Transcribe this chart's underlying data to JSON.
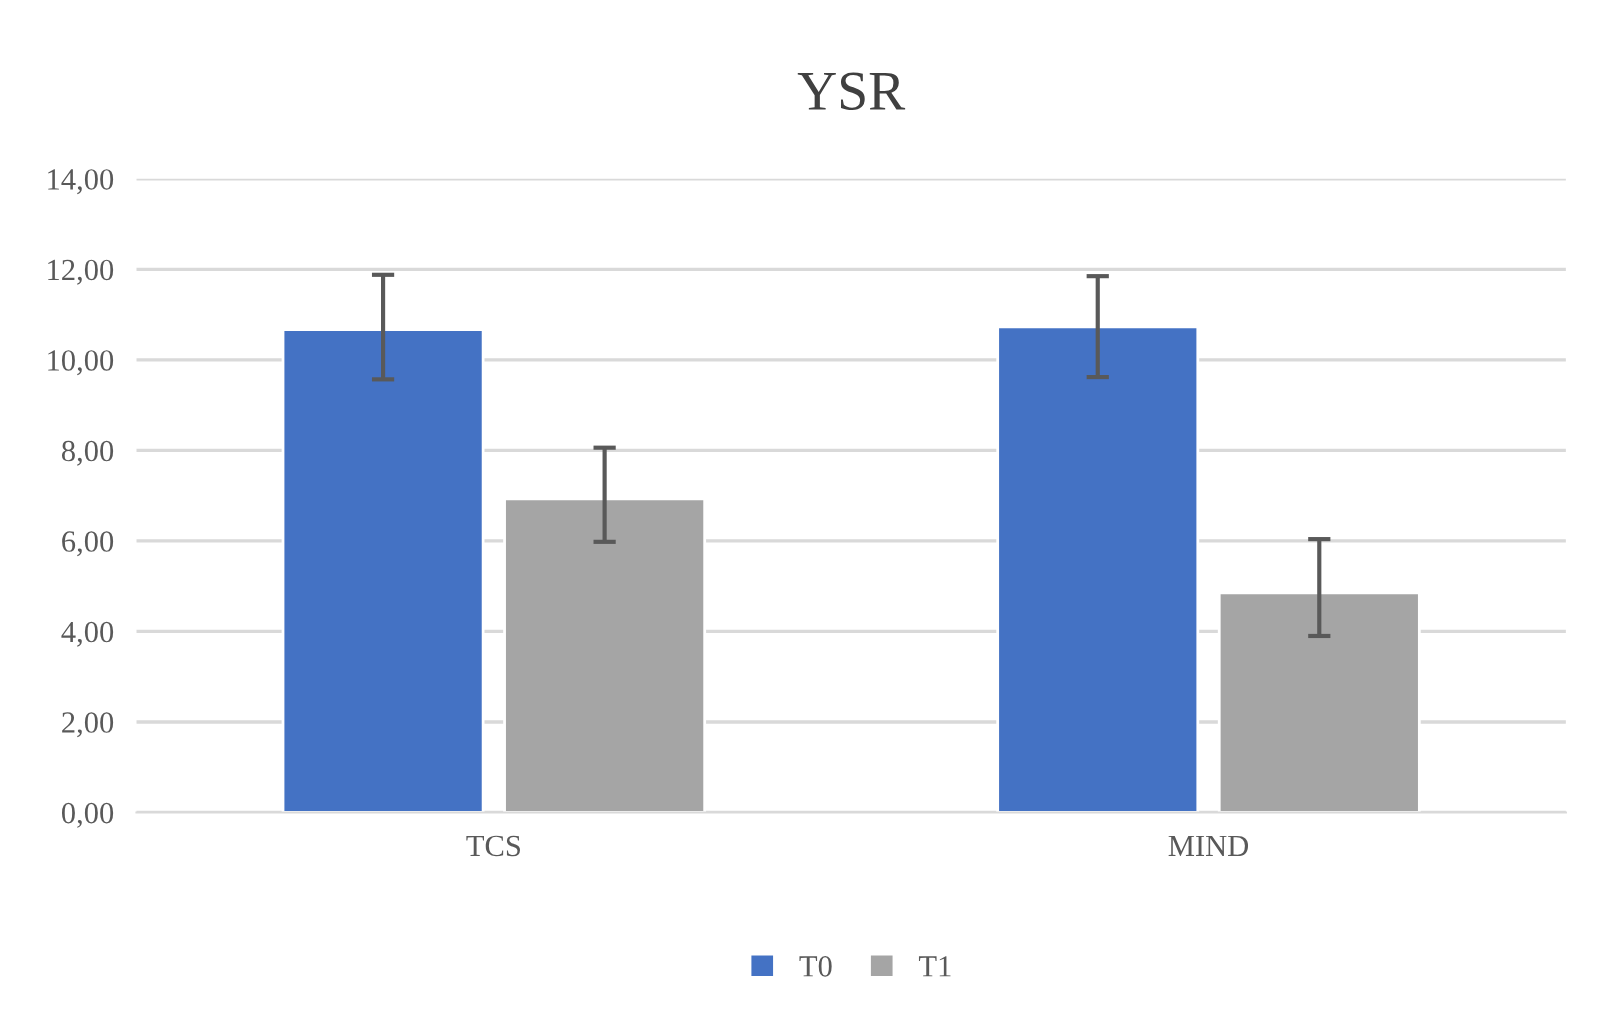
{
  "chart_data": {
    "type": "bar",
    "title": "YSR",
    "categories": [
      "TCS",
      "MIND"
    ],
    "series": [
      {
        "name": "T0",
        "color": "#4472c4",
        "values": [
          10.67,
          10.73
        ],
        "errors": [
          [
            9.57,
            11.88
          ],
          [
            9.62,
            11.85
          ]
        ]
      },
      {
        "name": "T1",
        "color": "#a5a5a5",
        "values": [
          6.93,
          4.85
        ],
        "errors": [
          [
            5.98,
            8.06
          ],
          [
            3.9,
            6.04
          ]
        ]
      }
    ],
    "ylim": [
      0,
      14
    ],
    "yticks": [
      {
        "value": 0,
        "label": "0,00"
      },
      {
        "value": 2,
        "label": "2,00"
      },
      {
        "value": 4,
        "label": "4,00"
      },
      {
        "value": 6,
        "label": "6,00"
      },
      {
        "value": 8,
        "label": "8,00"
      },
      {
        "value": 10,
        "label": "10,00"
      },
      {
        "value": 12,
        "label": "12,00"
      },
      {
        "value": 14,
        "label": "14,00"
      }
    ],
    "grid": "y",
    "legend": "bottom"
  }
}
